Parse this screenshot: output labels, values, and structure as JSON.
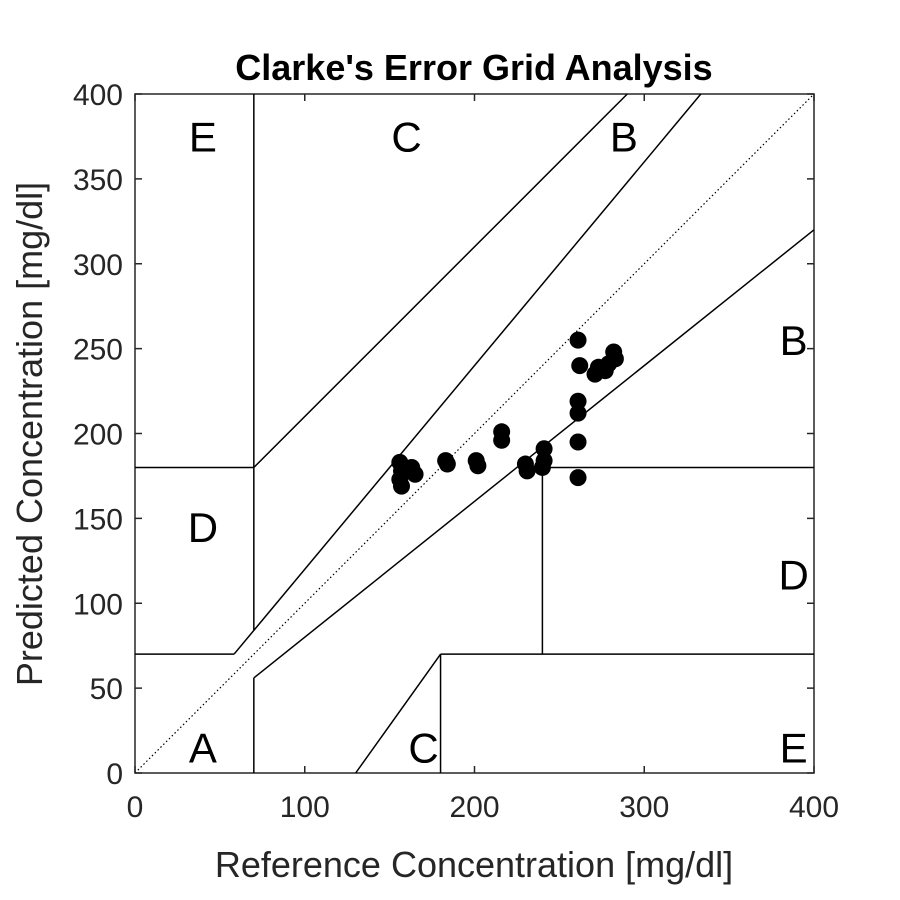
{
  "chart_data": {
    "type": "scatter",
    "title": "Clarke's Error Grid Analysis",
    "xlabel": "Reference Concentration [mg/dl]",
    "ylabel": "Predicted Concentration [mg/dl]",
    "xlim": [
      0,
      400
    ],
    "ylim": [
      0,
      400
    ],
    "xticks": [
      0,
      100,
      200,
      300,
      400
    ],
    "yticks": [
      0,
      50,
      100,
      150,
      200,
      250,
      300,
      350,
      400
    ],
    "grid": false,
    "marker_color": "#000000",
    "points": [
      {
        "x": 156,
        "y": 183
      },
      {
        "x": 157,
        "y": 178
      },
      {
        "x": 156,
        "y": 173
      },
      {
        "x": 157,
        "y": 169
      },
      {
        "x": 163,
        "y": 180
      },
      {
        "x": 165,
        "y": 176
      },
      {
        "x": 183,
        "y": 184
      },
      {
        "x": 184,
        "y": 182
      },
      {
        "x": 201,
        "y": 184
      },
      {
        "x": 202,
        "y": 181
      },
      {
        "x": 216,
        "y": 201
      },
      {
        "x": 216,
        "y": 196
      },
      {
        "x": 230,
        "y": 182
      },
      {
        "x": 231,
        "y": 178
      },
      {
        "x": 241,
        "y": 191
      },
      {
        "x": 241,
        "y": 184
      },
      {
        "x": 240,
        "y": 180
      },
      {
        "x": 261,
        "y": 255
      },
      {
        "x": 262,
        "y": 240
      },
      {
        "x": 261,
        "y": 219
      },
      {
        "x": 261,
        "y": 212
      },
      {
        "x": 261,
        "y": 195
      },
      {
        "x": 261,
        "y": 174
      },
      {
        "x": 271,
        "y": 235
      },
      {
        "x": 273,
        "y": 239
      },
      {
        "x": 277,
        "y": 237
      },
      {
        "x": 279,
        "y": 241
      },
      {
        "x": 282,
        "y": 248
      },
      {
        "x": 283,
        "y": 244
      }
    ],
    "reference_line": {
      "style": "dotted",
      "from": [
        0,
        0
      ],
      "to": [
        400,
        400
      ]
    },
    "zone_lines": [
      [
        [
          70,
          0
        ],
        [
          70,
          56
        ]
      ],
      [
        [
          70,
          56
        ],
        [
          400,
          320
        ]
      ],
      [
        [
          0,
          70
        ],
        [
          58.33,
          70
        ]
      ],
      [
        [
          58.33,
          70
        ],
        [
          333.33,
          400
        ]
      ],
      [
        [
          70,
          84
        ],
        [
          70,
          400
        ]
      ],
      [
        [
          0,
          180
        ],
        [
          70,
          180
        ]
      ],
      [
        [
          70,
          180
        ],
        [
          290,
          400
        ]
      ],
      [
        [
          130,
          0
        ],
        [
          180,
          70
        ]
      ],
      [
        [
          180,
          0
        ],
        [
          180,
          70
        ]
      ],
      [
        [
          180,
          70
        ],
        [
          400,
          70
        ]
      ],
      [
        [
          240,
          70
        ],
        [
          240,
          180
        ]
      ],
      [
        [
          240,
          180
        ],
        [
          400,
          180
        ]
      ]
    ],
    "zone_labels": [
      {
        "text": "E",
        "x": 40,
        "y": 375
      },
      {
        "text": "C",
        "x": 160,
        "y": 375
      },
      {
        "text": "B",
        "x": 288,
        "y": 375
      },
      {
        "text": "B",
        "x": 388,
        "y": 255
      },
      {
        "text": "D",
        "x": 40,
        "y": 145
      },
      {
        "text": "D",
        "x": 388,
        "y": 117
      },
      {
        "text": "A",
        "x": 40,
        "y": 15
      },
      {
        "text": "C",
        "x": 170,
        "y": 15
      },
      {
        "text": "E",
        "x": 388,
        "y": 15
      }
    ]
  }
}
